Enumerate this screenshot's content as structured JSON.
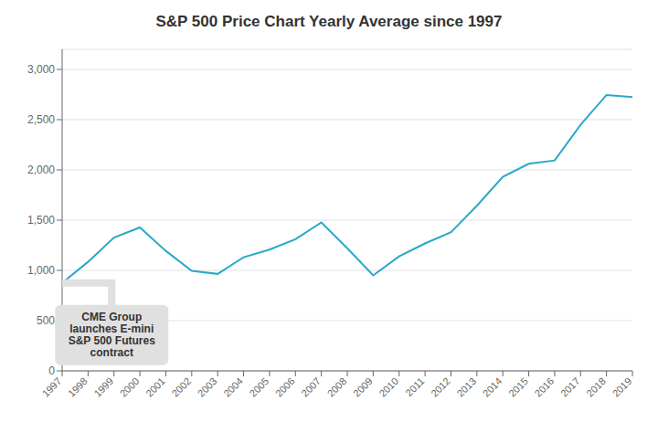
{
  "chart_data": {
    "type": "line",
    "title": "S&P 500 Price Chart Yearly Average since 1997",
    "categories": [
      "1997",
      "1998",
      "1999",
      "2000",
      "2001",
      "2002",
      "2003",
      "2004",
      "2005",
      "2006",
      "2007",
      "2008",
      "2009",
      "2010",
      "2011",
      "2012",
      "2013",
      "2014",
      "2015",
      "2016",
      "2017",
      "2018",
      "2019"
    ],
    "values": [
      875,
      1085,
      1327,
      1427,
      1194,
      995,
      965,
      1131,
      1207,
      1310,
      1477,
      1220,
      950,
      1139,
      1268,
      1380,
      1643,
      1931,
      2061,
      2094,
      2449,
      2746,
      2726
    ],
    "color": "#29a8c8",
    "ylim": [
      0,
      3200
    ],
    "yticks": [
      0,
      500,
      {
        "value": 1000,
        "label": "1,000"
      },
      {
        "value": 1500,
        "label": "1,500"
      },
      {
        "value": 2000,
        "label": "2,000"
      },
      {
        "value": 2500,
        "label": "2,500"
      },
      {
        "value": 3000,
        "label": "3,000"
      }
    ],
    "grid": true,
    "annotations": [
      {
        "text": "CME Group\nlaunches E-mini\nS&P 500 Futures\ncontract",
        "x": "1997",
        "y": 875
      }
    ]
  }
}
